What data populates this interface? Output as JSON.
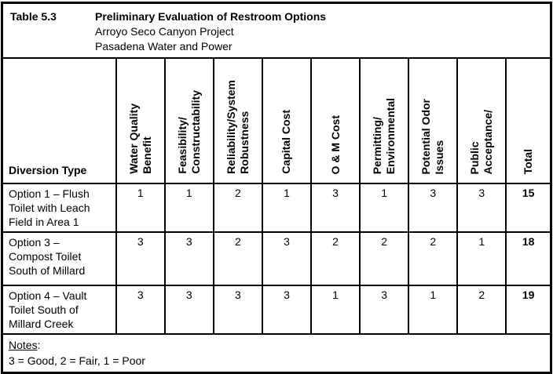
{
  "header": {
    "table_label": "Table 5.3",
    "title": "Preliminary Evaluation of Restroom Options",
    "subtitle1": "Arroyo Seco Canyon Project",
    "subtitle2": "Pasadena Water and Power"
  },
  "table": {
    "diversion_type_label": "Diversion Type",
    "columns": [
      "Water Quality\nBenefit",
      "Feasibility/\nConstructability",
      "Reliability/System\nRobustness",
      "Capital Cost",
      "O & M Cost",
      "Permitting/\nEnvironmental",
      "Potential Odor\nIssues",
      "Public\nAcceptance/",
      "Total"
    ],
    "rows": [
      {
        "label": "Option 1 – Flush\nToilet with Leach\nField in Area 1",
        "scores": [
          1,
          1,
          2,
          1,
          3,
          1,
          3,
          3
        ],
        "total": 15
      },
      {
        "label": "Option 3 –\nCompost Toilet\nSouth of Millard",
        "scores": [
          3,
          3,
          2,
          3,
          2,
          2,
          2,
          1
        ],
        "total": 18
      },
      {
        "label": "Option 4 – Vault\nToilet South of\nMillard Creek",
        "scores": [
          3,
          3,
          3,
          3,
          1,
          3,
          1,
          2
        ],
        "total": 19
      }
    ]
  },
  "notes": {
    "label": "Notes",
    "colon": ":",
    "legend": "3 = Good, 2 = Fair, 1 = Poor"
  }
}
